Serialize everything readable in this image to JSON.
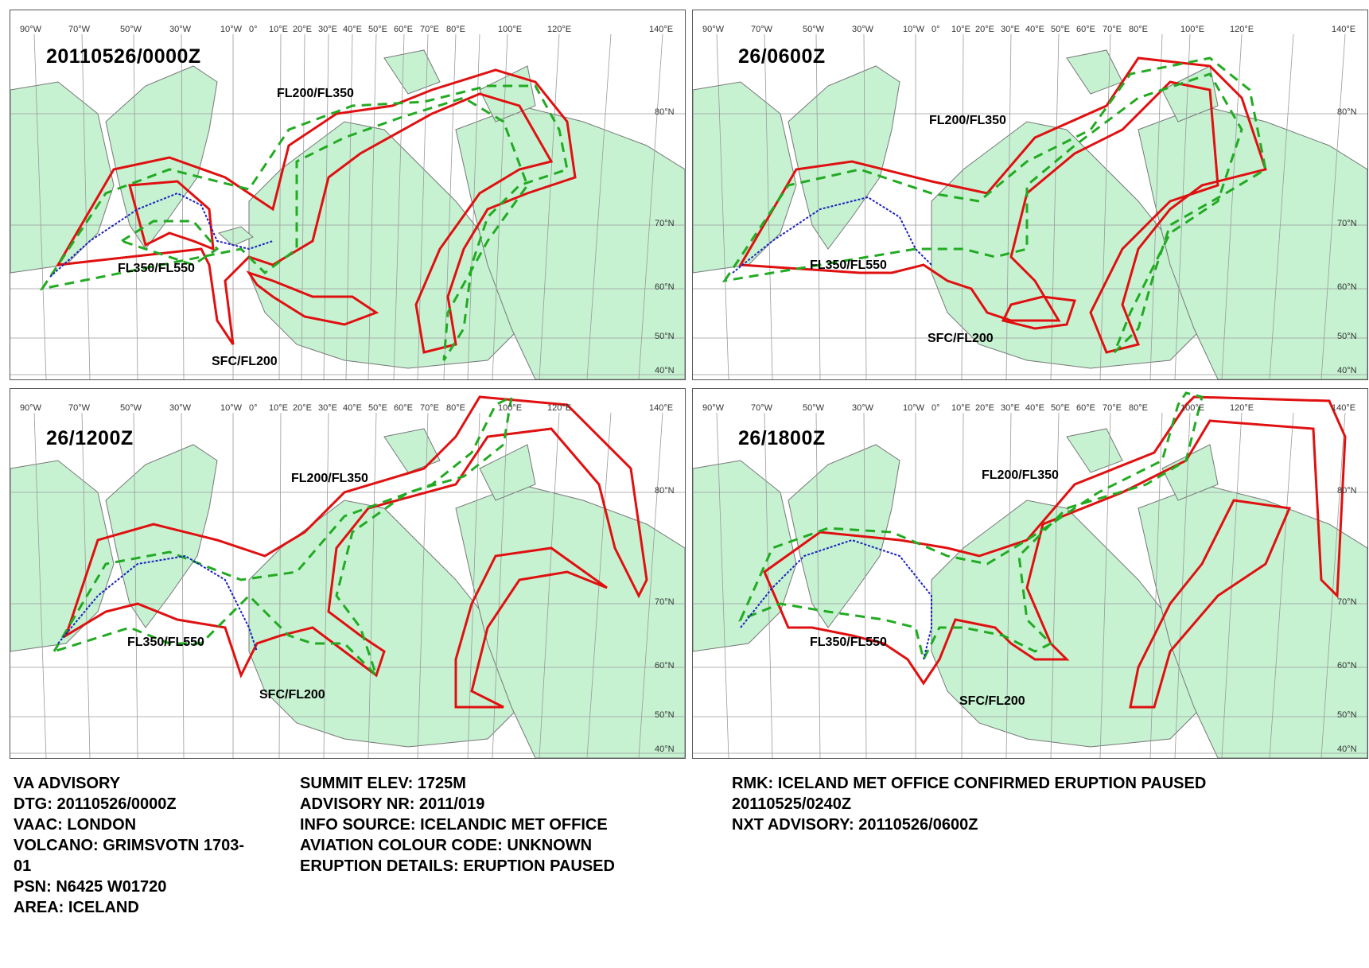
{
  "advisory_type": "VA ADVISORY",
  "lon_ticks": [
    "90°W",
    "70°W",
    "50°W",
    "30°W",
    "10°W",
    "0°",
    "10°E",
    "20°E",
    "30°E",
    "40°E",
    "50°E",
    "60°E",
    "70°E",
    "80°E",
    "100°E",
    "120°E",
    "140°E"
  ],
  "lat_ticks": [
    "80°N",
    "70°N",
    "60°N",
    "50°N",
    "40°N"
  ],
  "panels": [
    {
      "timestamp": "20110526/0000Z",
      "labels": {
        "upper": "FL200/FL350",
        "top": "FL350/FL550",
        "surface": "SFC/FL200"
      }
    },
    {
      "timestamp": "26/0600Z",
      "labels": {
        "upper": "FL200/FL350",
        "top": "FL350/FL550",
        "surface": "SFC/FL200"
      }
    },
    {
      "timestamp": "26/1200Z",
      "labels": {
        "upper": "FL200/FL350",
        "top": "FL350/FL550",
        "surface": "SFC/FL200"
      }
    },
    {
      "timestamp": "26/1800Z",
      "labels": {
        "upper": "FL200/FL350",
        "top": "FL350/FL550",
        "surface": "SFC/FL200"
      }
    }
  ],
  "advisory": {
    "dtg_label": "DTG:",
    "dtg": "20110526/0000Z",
    "vaac_label": "VAAC:",
    "vaac": "LONDON",
    "volcano_label": "VOLCANO:",
    "volcano": "GRIMSVOTN 1703-",
    "volcano_cont": "01",
    "psn_label": "PSN:",
    "psn": "N6425 W01720",
    "area_label": "AREA:",
    "area": "ICELAND",
    "summit_label": "SUMMIT ELEV:",
    "summit": "1725M",
    "advnr_label": "ADVISORY NR:",
    "advnr": "2011/019",
    "info_label": "INFO SOURCE:",
    "info": "ICELANDIC MET OFFICE",
    "colour_label": "AVIATION COLOUR CODE:",
    "colour": "UNKNOWN",
    "erupt_label": "ERUPTION DETAILS:",
    "erupt": "ERUPTION PAUSED",
    "rmk_label": "RMK:",
    "rmk": "ICELAND MET OFFICE CONFIRMED ERUPTION PAUSED",
    "rmk_cont": "20110525/0240Z",
    "nxt_label": "NXT ADVISORY:",
    "nxt": "20110526/0600Z"
  },
  "colors": {
    "land": "#c6f2d2",
    "coast": "#777777",
    "grid": "#9a9a9a",
    "layer_surface_fl200": "#e01010",
    "layer_fl200_fl350": "#e01010",
    "layer_fl350_fl550": "#22aa22",
    "jet_stream": "#1a22c0"
  }
}
